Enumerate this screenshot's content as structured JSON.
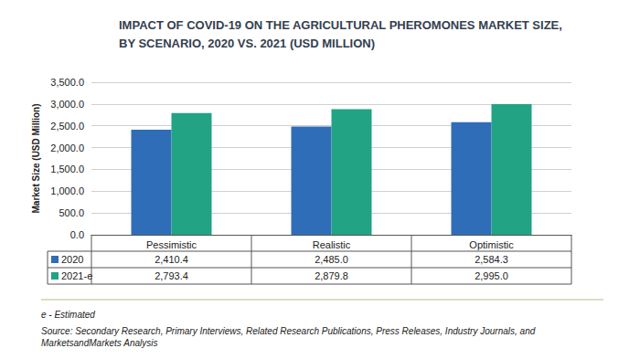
{
  "chart_data": {
    "type": "bar",
    "title": "IMPACT OF COVID-19 ON THE AGRICULTURAL PHEROMONES MARKET SIZE,\nBY SCENARIO, 2020 VS. 2021 (USD MILLION)",
    "y_label": "Market Size (USD Million)",
    "categories": [
      "Pessimistic",
      "Realistic",
      "Optimistic"
    ],
    "series": [
      {
        "name": "2020",
        "color": "#2f6db8",
        "values": [
          2410.4,
          2485.0,
          2584.3
        ],
        "value_labels": [
          "2,410.4",
          "2,485.0",
          "2,584.3"
        ]
      },
      {
        "name": "2021-e",
        "color": "#21a384",
        "values": [
          2793.4,
          2879.8,
          2995.0
        ],
        "value_labels": [
          "2,793.4",
          "2,879.8",
          "2,995.0"
        ]
      }
    ],
    "ylim": [
      0,
      3500
    ],
    "yticks": [
      {
        "value": 0,
        "label": "0.0"
      },
      {
        "value": 500,
        "label": "500.0"
      },
      {
        "value": 1000,
        "label": "1,000.0"
      },
      {
        "value": 1500,
        "label": "1,500.0"
      },
      {
        "value": 2000,
        "label": "2,000.0"
      },
      {
        "value": 2500,
        "label": "2,500.0"
      },
      {
        "value": 3000,
        "label": "3,000.0"
      },
      {
        "value": 3500,
        "label": "3,500.0"
      }
    ],
    "grid": true,
    "annotations": [
      "e - Estimated",
      "Source: Secondary Research, Primary Interviews, Related Research Publications, Press Releases, Industry Journals, and MarketsandMarkets Analysis"
    ]
  }
}
